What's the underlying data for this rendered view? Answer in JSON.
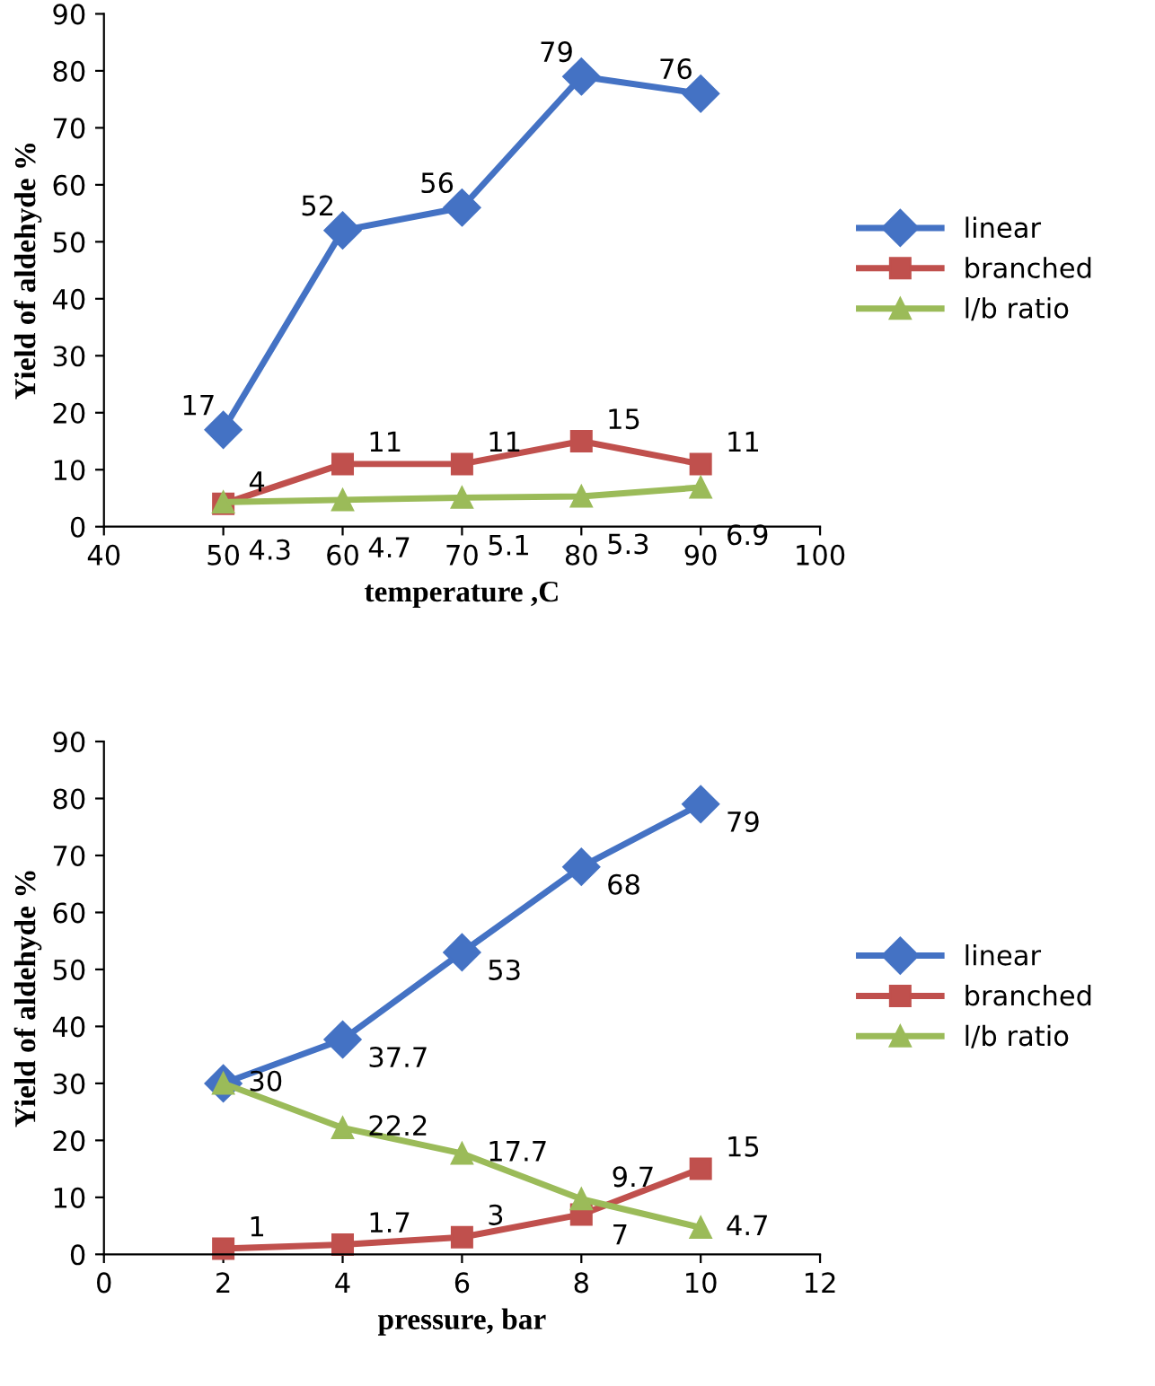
{
  "chart_data": [
    {
      "type": "line",
      "xlabel": "temperature ,C",
      "ylabel": "Yield of aldehyde %",
      "x": [
        50,
        60,
        70,
        80,
        90
      ],
      "xlim": [
        40,
        100
      ],
      "xticks": [
        40,
        50,
        60,
        70,
        80,
        90,
        100
      ],
      "ylim": [
        0,
        90
      ],
      "yticks": [
        0,
        10,
        20,
        30,
        40,
        50,
        60,
        70,
        80,
        90
      ],
      "grid": false,
      "legend": "right",
      "data_labels": true,
      "series": [
        {
          "name": "linear",
          "color": "#4472c4",
          "marker": "diamond",
          "values": [
            17,
            52,
            56,
            79,
            76
          ]
        },
        {
          "name": "branched",
          "color": "#c0504d",
          "marker": "square",
          "values": [
            4,
            11,
            11,
            15,
            11
          ]
        },
        {
          "name": "l/b ratio",
          "color": "#9bbb59",
          "marker": "triangle",
          "values": [
            4.3,
            4.7,
            5.1,
            5.3,
            6.9
          ]
        }
      ]
    },
    {
      "type": "line",
      "xlabel": "pressure, bar",
      "ylabel": "Yield of aldehyde %",
      "x": [
        2,
        4,
        6,
        8,
        10
      ],
      "xlim": [
        0,
        12
      ],
      "xticks": [
        0,
        2,
        4,
        6,
        8,
        10,
        12
      ],
      "ylim": [
        0,
        90
      ],
      "yticks": [
        0,
        10,
        20,
        30,
        40,
        50,
        60,
        70,
        80,
        90
      ],
      "grid": false,
      "legend": "right",
      "series": [
        {
          "name": "linear",
          "color": "#4472c4",
          "marker": "diamond",
          "values": [
            30,
            37.7,
            53,
            68,
            79
          ],
          "value_labels": [
            null,
            "37.7",
            "53",
            "68",
            "79"
          ]
        },
        {
          "name": "branched",
          "color": "#c0504d",
          "marker": "square",
          "values": [
            1,
            1.7,
            3,
            7,
            15
          ],
          "value_labels": [
            "1",
            "1.7",
            "3",
            "7",
            "15"
          ]
        },
        {
          "name": "l/b ratio",
          "color": "#9bbb59",
          "marker": "triangle",
          "values": [
            30,
            22.2,
            17.7,
            9.7,
            4.7
          ],
          "value_labels": [
            "30",
            "22.2",
            "17.7",
            "9.7",
            "4.7"
          ]
        }
      ]
    }
  ]
}
